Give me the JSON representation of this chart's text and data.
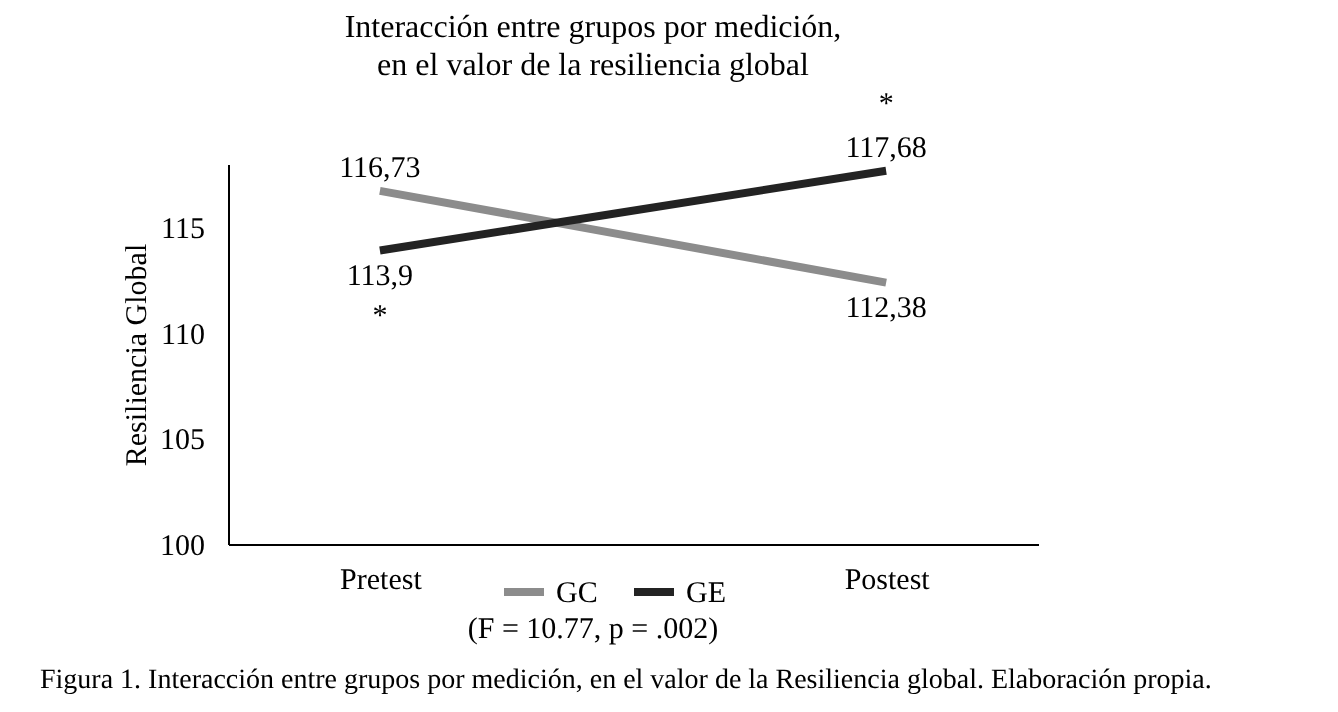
{
  "chart_data": {
    "type": "line",
    "title": "Interacción entre grupos por medición,\nen el valor de la resiliencia global",
    "ylabel": "Resiliencia Global",
    "categories": [
      "Pretest",
      "Postest"
    ],
    "series": [
      {
        "name": "GC",
        "color": "#8c8c8c",
        "values": [
          116.73,
          112.38
        ],
        "value_labels": [
          "116,73",
          "112,38"
        ]
      },
      {
        "name": "GE",
        "color": "#232323",
        "values": [
          113.9,
          117.68
        ],
        "value_labels": [
          "113,9",
          "117,68"
        ]
      }
    ],
    "ylim": [
      100,
      118
    ],
    "yticks": [
      100,
      105,
      110,
      115
    ],
    "grid": false,
    "legend": "bottom",
    "marker": "none",
    "line_style": "solid",
    "annotations": [
      {
        "text": "*",
        "x": "Pretest",
        "y": 113.9
      },
      {
        "text": "*",
        "x": "Postest",
        "y": 117.68
      },
      "(F = 10.77, p = .002)",
      "Figura 1. Interacción entre grupos por medición, en el valor de la Resiliencia global. Elaboración propia."
    ]
  }
}
